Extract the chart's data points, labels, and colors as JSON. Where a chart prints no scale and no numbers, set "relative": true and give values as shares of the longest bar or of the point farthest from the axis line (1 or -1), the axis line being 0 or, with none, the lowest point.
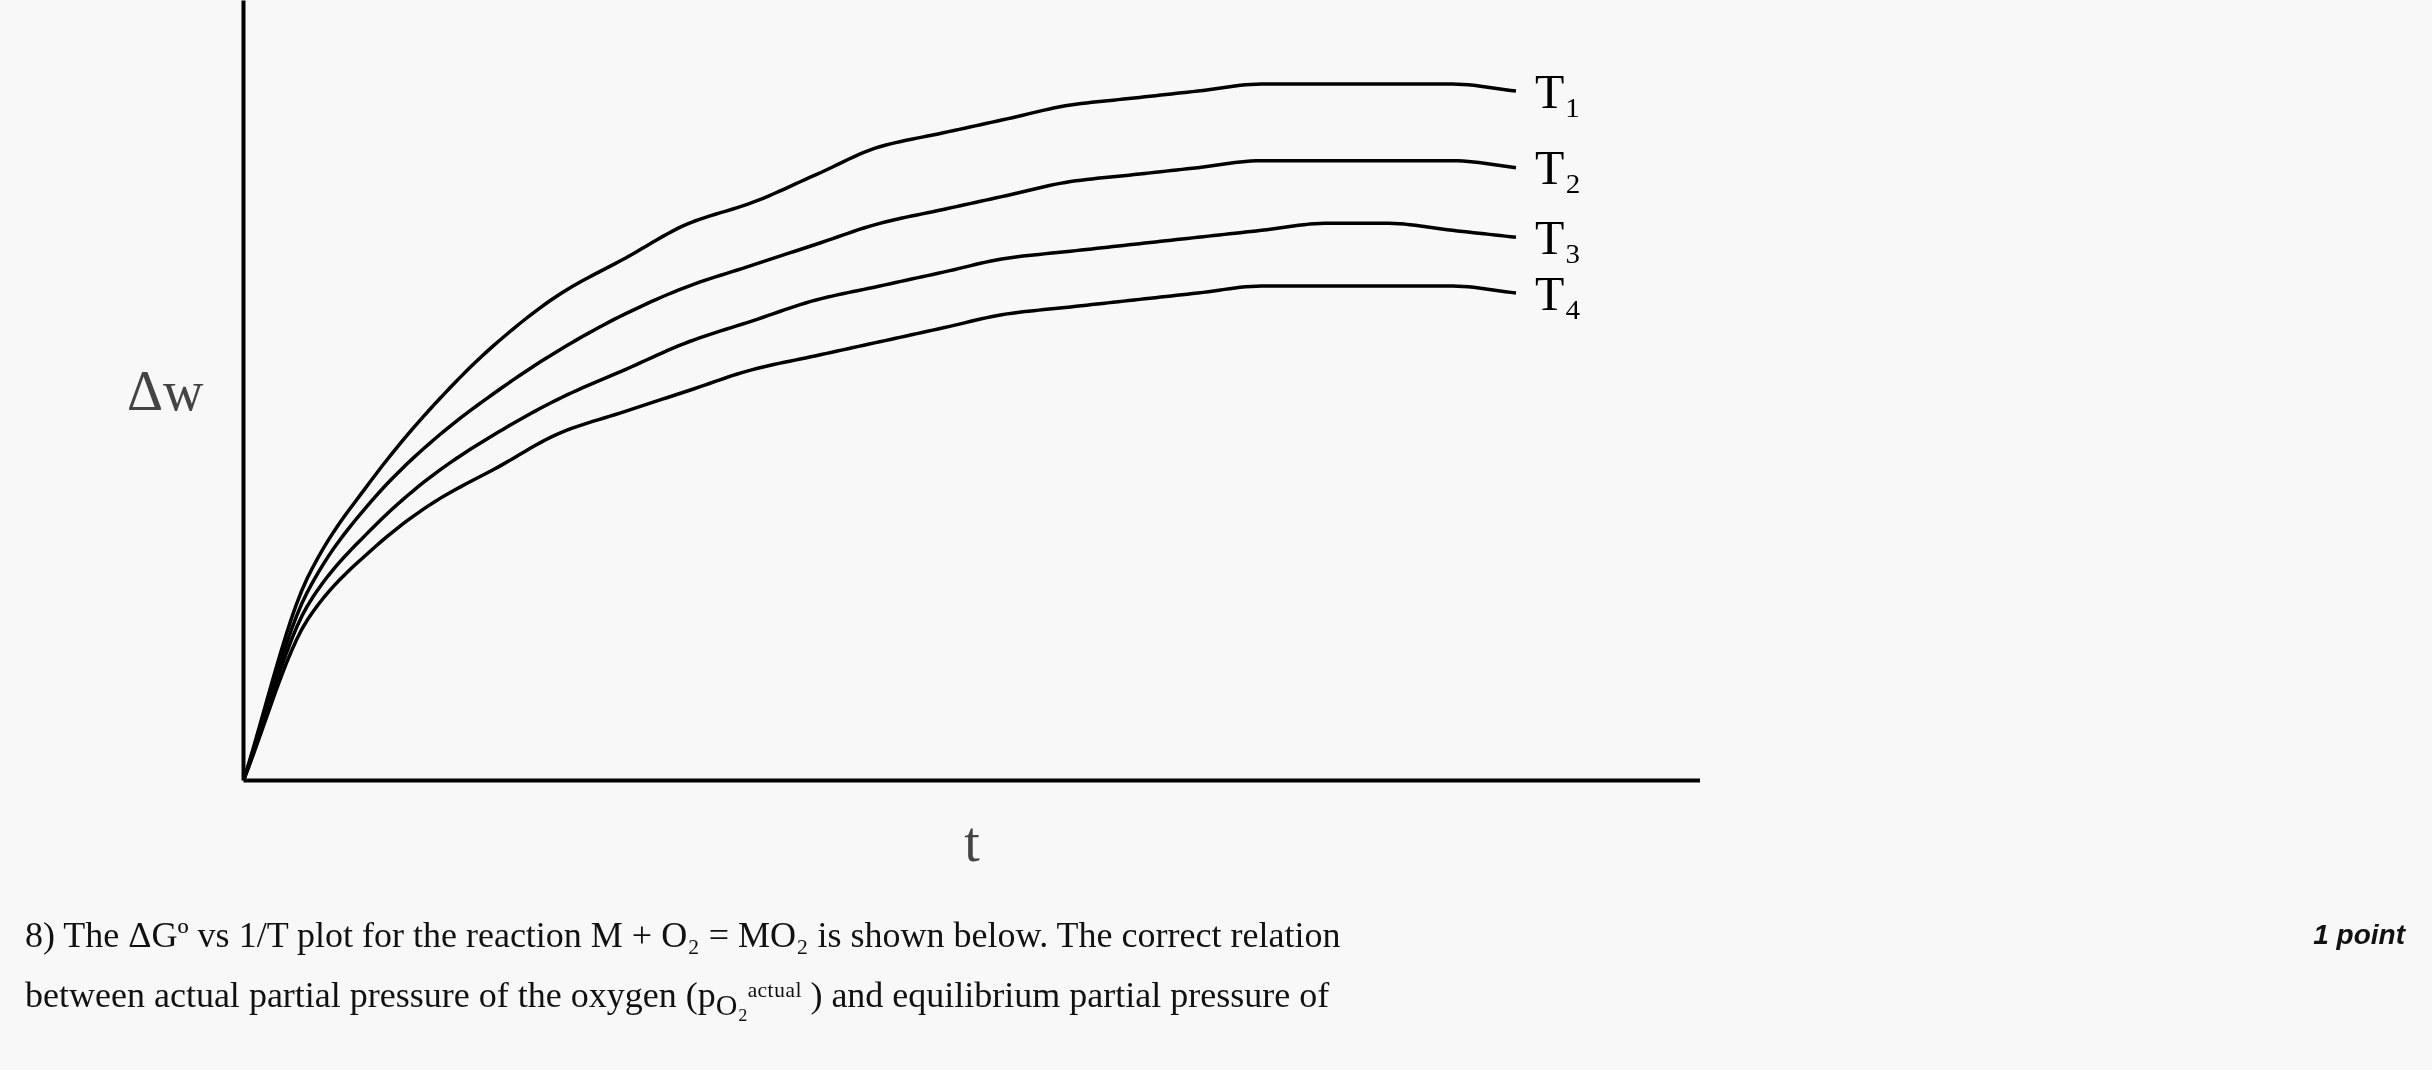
{
  "chart_data": {
    "type": "line",
    "relative": true,
    "xlabel": "t",
    "ylabel": "Δw",
    "legend": false,
    "marker": "none",
    "line_style": "solid",
    "categories": [
      null,
      null,
      null,
      null,
      null,
      null,
      null,
      null,
      null,
      null,
      null,
      null,
      null,
      null,
      null,
      null,
      null,
      null,
      null,
      null,
      null,
      null,
      null
    ],
    "series": [
      {
        "name": "T₁",
        "color": "#000000",
        "values": [
          0,
          0.29,
          0.43,
          0.54,
          0.63,
          0.7,
          0.75,
          0.8,
          0.83,
          0.87,
          0.91,
          0.93,
          0.95,
          0.97,
          0.98,
          0.99,
          1.0,
          1.0,
          1.0,
          1.0,
          0.99,
          null,
          null
        ]
      },
      {
        "name": "T₂",
        "color": "#000000",
        "values": [
          0,
          0.27,
          0.4,
          0.49,
          0.56,
          0.62,
          0.67,
          0.71,
          0.74,
          0.77,
          0.8,
          0.82,
          0.84,
          0.86,
          0.87,
          0.88,
          0.89,
          0.89,
          0.89,
          0.89,
          0.88,
          null,
          null
        ]
      },
      {
        "name": "T₃",
        "color": "#000000",
        "values": [
          0,
          0.25,
          0.36,
          0.44,
          0.5,
          0.55,
          0.59,
          0.63,
          0.66,
          0.69,
          0.71,
          0.73,
          0.75,
          0.76,
          0.77,
          0.78,
          0.79,
          0.8,
          0.8,
          0.79,
          0.78,
          null,
          null
        ]
      },
      {
        "name": "T₄",
        "color": "#000000",
        "values": [
          0,
          0.23,
          0.33,
          0.4,
          0.45,
          0.5,
          0.53,
          0.56,
          0.59,
          0.61,
          0.63,
          0.65,
          0.67,
          0.68,
          0.69,
          0.7,
          0.71,
          0.71,
          0.71,
          0.71,
          0.7,
          null,
          null
        ]
      }
    ],
    "annotations": [
      "8) The ΔGº vs 1/T plot for the reaction M + O₂ = MO₂ is shown below. The correct relation",
      "between actual partial pressure of the oxygen (p$_{O₂}$ᵃᶜᵗᵘᵃˡ ) and equilibrium partial pressure of",
      "1 point"
    ]
  }
}
